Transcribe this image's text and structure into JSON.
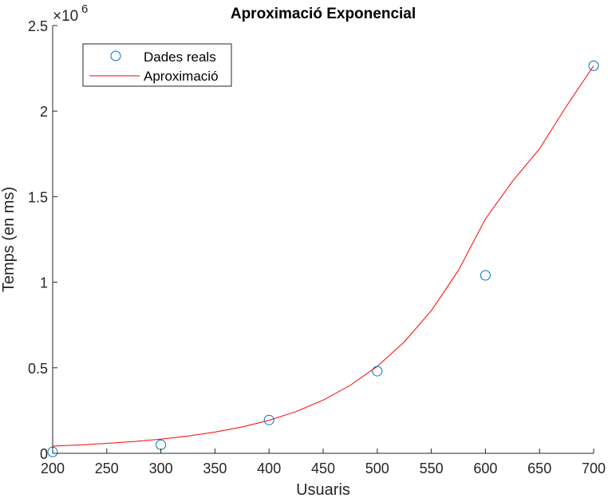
{
  "chart_data": {
    "type": "scatter",
    "title": "Aproximació Exponencial",
    "xlabel": "Usuaris",
    "ylabel": "Temps (en ms)",
    "xlim": [
      200,
      700
    ],
    "ylim": [
      0,
      2500000
    ],
    "x_ticks": [
      200,
      250,
      300,
      350,
      400,
      450,
      500,
      550,
      600,
      650,
      700
    ],
    "y_ticks": [
      0,
      500000,
      1000000,
      1500000,
      2000000,
      2500000
    ],
    "y_tick_labels": [
      "0",
      "0.5",
      "1",
      "1.5",
      "2",
      "2.5"
    ],
    "y_multiplier_base": "10",
    "y_multiplier_exponent": "6",
    "grid": false,
    "legend_position": "top-left",
    "series": [
      {
        "name": "Dades reals",
        "style": "markers",
        "color": "#0072BD",
        "x": [
          200,
          300,
          400,
          500,
          600,
          700
        ],
        "y": [
          8000,
          50000,
          195000,
          480000,
          1040000,
          2265000
        ]
      },
      {
        "name": "Aproximació",
        "style": "line",
        "color": "#FF0000",
        "x": [
          200,
          225,
          250,
          275,
          300,
          325,
          350,
          375,
          400,
          425,
          450,
          475,
          500,
          525,
          550,
          575,
          600,
          625,
          650,
          675,
          700
        ],
        "y": [
          42000,
          49000,
          58000,
          69000,
          83000,
          101000,
          124000,
          154000,
          193000,
          244000,
          311000,
          397000,
          508000,
          651000,
          834000,
          1069000,
          1370000,
          1590000,
          1780000,
          2030000,
          2265000
        ]
      }
    ]
  }
}
